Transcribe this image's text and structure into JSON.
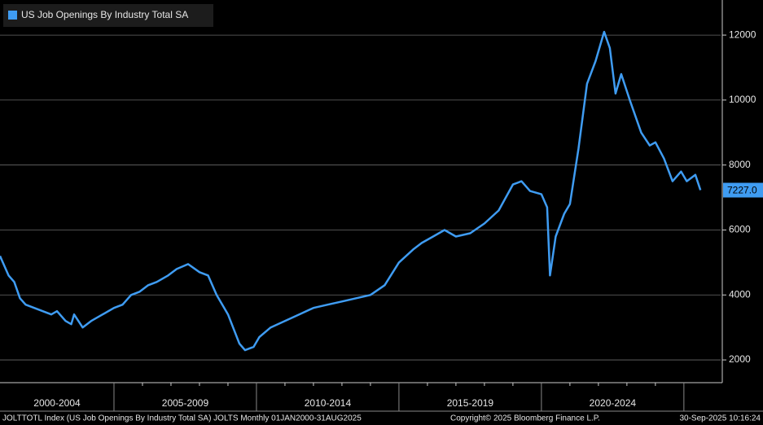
{
  "chart_data": {
    "type": "line",
    "legend": "US Job Openings By Industry Total SA",
    "x": [
      2001.0,
      2001.1,
      2001.3,
      2001.5,
      2001.7,
      2001.9,
      2002.2,
      2002.5,
      2002.8,
      2003.0,
      2003.3,
      2003.5,
      2003.6,
      2003.9,
      2004.2,
      2004.6,
      2005.0,
      2005.3,
      2005.6,
      2005.9,
      2006.2,
      2006.5,
      2006.9,
      2007.2,
      2007.6,
      2008.0,
      2008.3,
      2008.6,
      2009.0,
      2009.4,
      2009.6,
      2009.9,
      2010.1,
      2010.5,
      2011.0,
      2011.5,
      2012.0,
      2012.5,
      2013.0,
      2013.5,
      2014.0,
      2014.5,
      2015.0,
      2015.5,
      2015.8,
      2016.2,
      2016.6,
      2017.0,
      2017.5,
      2018.0,
      2018.5,
      2019.0,
      2019.3,
      2019.6,
      2020.0,
      2020.2,
      2020.3,
      2020.5,
      2020.8,
      2021.0,
      2021.3,
      2021.6,
      2021.9,
      2022.2,
      2022.4,
      2022.6,
      2022.8,
      2023.1,
      2023.5,
      2023.8,
      2024.0,
      2024.3,
      2024.6,
      2024.9,
      2025.1,
      2025.4,
      2025.58
    ],
    "series": [
      {
        "name": "US Job Openings By Industry Total SA",
        "color": "#3f9cf2",
        "values": [
          5200,
          5000,
          4600,
          4400,
          3900,
          3700,
          3600,
          3500,
          3400,
          3500,
          3200,
          3100,
          3400,
          3000,
          3200,
          3400,
          3600,
          3700,
          4000,
          4100,
          4300,
          4400,
          4600,
          4800,
          4950,
          4700,
          4600,
          4000,
          3400,
          2500,
          2300,
          2400,
          2700,
          3000,
          3200,
          3400,
          3600,
          3700,
          3800,
          3900,
          4000,
          4300,
          5000,
          5400,
          5600,
          5800,
          6000,
          5800,
          5900,
          6200,
          6600,
          7400,
          7500,
          7200,
          7100,
          6700,
          4600,
          5800,
          6500,
          6800,
          8500,
          10500,
          11200,
          12100,
          11600,
          10200,
          10800,
          10000,
          9000,
          8600,
          8700,
          8200,
          7500,
          7800,
          7500,
          7700,
          7227
        ]
      }
    ],
    "last_label": "7227.0",
    "xlim": [
      2001.0,
      2026.29
    ],
    "xticks": [
      2005,
      2010,
      2015,
      2020,
      2025
    ],
    "x_periods": [
      "2000-2004",
      "2005-2009",
      "2010-2014",
      "2015-2019",
      "2020-2024"
    ],
    "ylim": [
      1300,
      13080
    ],
    "yticks": [
      2000,
      4000,
      6000,
      8000,
      10000,
      12000
    ],
    "grid": true,
    "footer_left": "JOLTTOTL Index (US Job Openings By Industry Total SA) JOLTS  Monthly 01JAN2000-31AUG2025",
    "footer_center": "Copyright© 2025 Bloomberg Finance L.P.",
    "footer_right": "30-Sep-2025 10:16:24"
  }
}
